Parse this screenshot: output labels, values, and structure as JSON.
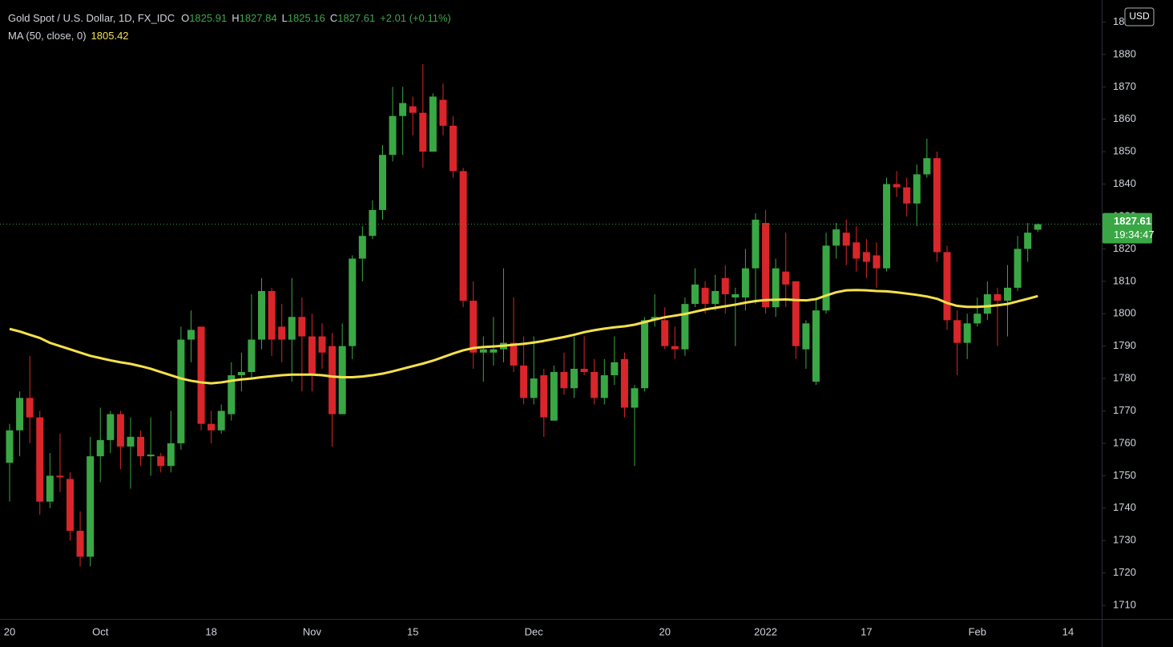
{
  "chart_data": {
    "type": "candlestick",
    "title": "Gold Spot / U.S. Dollar, 1D, FX_IDC",
    "ohlc_labels": [
      "O",
      "H",
      "L",
      "C"
    ],
    "change_label": "+2.01 (+0.11%)",
    "currency": "USD",
    "countdown": "19:34:47",
    "up_color": "#3aa745",
    "down_color": "#d9262a",
    "grid": false,
    "categories": [
      "20",
      null,
      null,
      null,
      null,
      null,
      null,
      null,
      null,
      "Oct",
      null,
      null,
      null,
      null,
      null,
      null,
      null,
      null,
      null,
      null,
      "18",
      null,
      null,
      null,
      null,
      null,
      null,
      null,
      null,
      null,
      "Nov",
      null,
      null,
      null,
      null,
      null,
      null,
      null,
      null,
      null,
      "15",
      null,
      null,
      null,
      null,
      null,
      null,
      null,
      null,
      null,
      null,
      null,
      "Dec",
      null,
      null,
      null,
      null,
      null,
      null,
      null,
      null,
      null,
      null,
      null,
      null,
      "20",
      null,
      null,
      null,
      null,
      null,
      null,
      null,
      null,
      null,
      "2022",
      null,
      null,
      null,
      null,
      null,
      null,
      null,
      null,
      null,
      "17",
      null,
      null,
      null,
      null,
      null,
      null,
      null,
      null,
      null,
      null,
      "Feb",
      null,
      null,
      null,
      null,
      null,
      null,
      null,
      null,
      "14"
    ],
    "open": [
      1754,
      1764,
      1774,
      1768,
      1742,
      1750,
      1749,
      1733,
      1725,
      1756,
      1761,
      1769,
      1759,
      1762,
      1756,
      1756,
      1753,
      1760,
      1792,
      1796,
      1766,
      1764,
      1769,
      1781,
      1782,
      1792,
      1807,
      1796,
      1792,
      1799,
      1793,
      1793,
      1790,
      1769,
      1790,
      1817,
      1824,
      1832,
      1849,
      1861,
      1864,
      1862,
      1850,
      1866,
      1858,
      1844,
      1804,
      1788,
      1788,
      1789,
      1791,
      1784,
      1774,
      1781,
      1767,
      1782,
      1777,
      1783,
      1782,
      1774,
      1781,
      1786,
      1771,
      1777,
      1798,
      1798,
      1790,
      1789,
      1803,
      1808,
      1803,
      1811,
      1805,
      1805,
      1814,
      1828,
      1802,
      1813,
      1810,
      1789,
      1779,
      1801,
      1821,
      1825,
      1822,
      1819,
      1818,
      1814,
      1840,
      1839,
      1834,
      1843,
      1848,
      1819,
      1798,
      1791,
      1797,
      1800,
      1806,
      1804,
      1808,
      1820,
      1825.91,
      null,
      null,
      null
    ],
    "high": [
      1766,
      1776,
      1787,
      1770,
      1757,
      1763,
      1751,
      1739,
      1762,
      1771,
      1770,
      1770,
      1768,
      1764,
      1768,
      1757,
      1770,
      1796,
      1801,
      1796,
      1770,
      1772,
      1785,
      1788,
      1806,
      1811,
      1808,
      1803,
      1811,
      1805,
      1800,
      1797,
      1794,
      1797,
      1818,
      1827,
      1835,
      1852,
      1870,
      1870,
      1867,
      1877,
      1868,
      1871,
      1861,
      1845,
      1810,
      1793,
      1799,
      1814,
      1805,
      1793,
      1793,
      1783,
      1784,
      1788,
      1793,
      1793,
      1786,
      1786,
      1793,
      1788,
      1778,
      1799,
      1806,
      1802,
      1796,
      1805,
      1814,
      1810,
      1812,
      1815,
      1808,
      1820,
      1831,
      1832,
      1817,
      1825,
      1810,
      1798,
      1805,
      1825,
      1828,
      1829,
      1827,
      1823,
      1822,
      1842,
      1844,
      1842,
      1846,
      1854,
      1850,
      1821,
      1801,
      1800,
      1805,
      1810,
      1808,
      1815,
      1824,
      1828,
      1827.84,
      null,
      null,
      null
    ],
    "low": [
      1742,
      1756,
      1760,
      1738,
      1740,
      1745,
      1730,
      1722,
      1722,
      1748,
      1757,
      1752,
      1746,
      1753,
      1750,
      1751,
      1751,
      1758,
      1785,
      1764,
      1760,
      1763,
      1767,
      1776,
      1780,
      1789,
      1787,
      1785,
      1779,
      1776,
      1776,
      1783,
      1759,
      1769,
      1786,
      1810,
      1823,
      1829,
      1847,
      1849,
      1855,
      1845,
      1850,
      1855,
      1842,
      1802,
      1783,
      1779,
      1784,
      1785,
      1782,
      1772,
      1772,
      1762,
      1767,
      1775,
      1774,
      1781,
      1772,
      1772,
      1778,
      1768,
      1753,
      1776,
      1796,
      1789,
      1786,
      1787,
      1802,
      1800,
      1801,
      1800,
      1790,
      1801,
      1803,
      1800,
      1799,
      1802,
      1786,
      1783,
      1778,
      1800,
      1817,
      1815,
      1813,
      1811,
      1808,
      1813,
      1836,
      1830,
      1827,
      1842,
      1816,
      1795,
      1781,
      1786,
      1796,
      1798,
      1790,
      1793,
      1807,
      1816,
      1825.16,
      null,
      null,
      null
    ],
    "close": [
      1764,
      1774,
      1768,
      1742,
      1750,
      1749.5,
      1733,
      1725,
      1756,
      1761,
      1769,
      1759,
      1762,
      1756,
      1756.5,
      1753,
      1760,
      1792,
      1795,
      1766,
      1764,
      1770,
      1781,
      1782,
      1792,
      1807,
      1792,
      1792,
      1799,
      1793,
      1781,
      1788,
      1769,
      1790,
      1817,
      1824,
      1832,
      1849,
      1861,
      1865,
      1862,
      1850,
      1867,
      1858,
      1844,
      1804,
      1788,
      1789,
      1789,
      1791,
      1784,
      1774,
      1780,
      1768,
      1782,
      1777,
      1783,
      1782,
      1774,
      1781,
      1785,
      1771,
      1777,
      1798,
      1799,
      1790,
      1789,
      1803,
      1809,
      1803,
      1807,
      1806,
      1806,
      1814,
      1829,
      1802,
      1814,
      1809,
      1790,
      1797,
      1801,
      1821,
      1826,
      1821,
      1817,
      1816,
      1814,
      1840,
      1839,
      1834,
      1843,
      1848,
      1819,
      1798,
      1791,
      1797,
      1800,
      1806,
      1804,
      1808,
      1820,
      1825,
      1827.61,
      null,
      null,
      null
    ],
    "ma": {
      "name": "MA (50, close, 0)",
      "color": "#f5e14b",
      "values": [
        1795.3,
        1794.5,
        1793.5,
        1792.5,
        1791,
        1790,
        1789,
        1788,
        1787,
        1786.3,
        1785.6,
        1785,
        1784.5,
        1783.8,
        1783,
        1782,
        1781,
        1780,
        1779.3,
        1778.8,
        1778.5,
        1778.8,
        1779.3,
        1779.7,
        1780,
        1780.4,
        1780.7,
        1781,
        1781.2,
        1781.2,
        1781.2,
        1781,
        1780.6,
        1780.4,
        1780.4,
        1780.6,
        1781,
        1781.5,
        1782.2,
        1783,
        1783.8,
        1784.6,
        1785.5,
        1786.6,
        1787.7,
        1788.7,
        1789.4,
        1789.7,
        1789.9,
        1790.1,
        1790.4,
        1790.7,
        1791.1,
        1791.6,
        1792.2,
        1792.8,
        1793.5,
        1794.3,
        1794.9,
        1795.4,
        1795.8,
        1796.1,
        1796.6,
        1797.4,
        1798.2,
        1798.9,
        1799.4,
        1799.9,
        1800.6,
        1801.3,
        1801.8,
        1802.3,
        1802.8,
        1803.4,
        1803.9,
        1804.2,
        1804.3,
        1804.4,
        1804.2,
        1804.1,
        1804.5,
        1805.6,
        1806.6,
        1807.2,
        1807.3,
        1807.2,
        1807,
        1806.9,
        1806.6,
        1806.2,
        1805.8,
        1805.3,
        1804.6,
        1803.3,
        1802.4,
        1802.1,
        1802.1,
        1802.3,
        1802.6,
        1803,
        1803.8,
        1804.6,
        1805.42,
        null,
        null,
        null
      ]
    },
    "ylim": [
      1705.8,
      1896.8
    ],
    "yticks": [
      1710,
      1720,
      1730,
      1740,
      1750,
      1760,
      1770,
      1780,
      1790,
      1800,
      1810,
      1820,
      1830,
      1840,
      1850,
      1860,
      1870,
      1880,
      1890
    ]
  }
}
